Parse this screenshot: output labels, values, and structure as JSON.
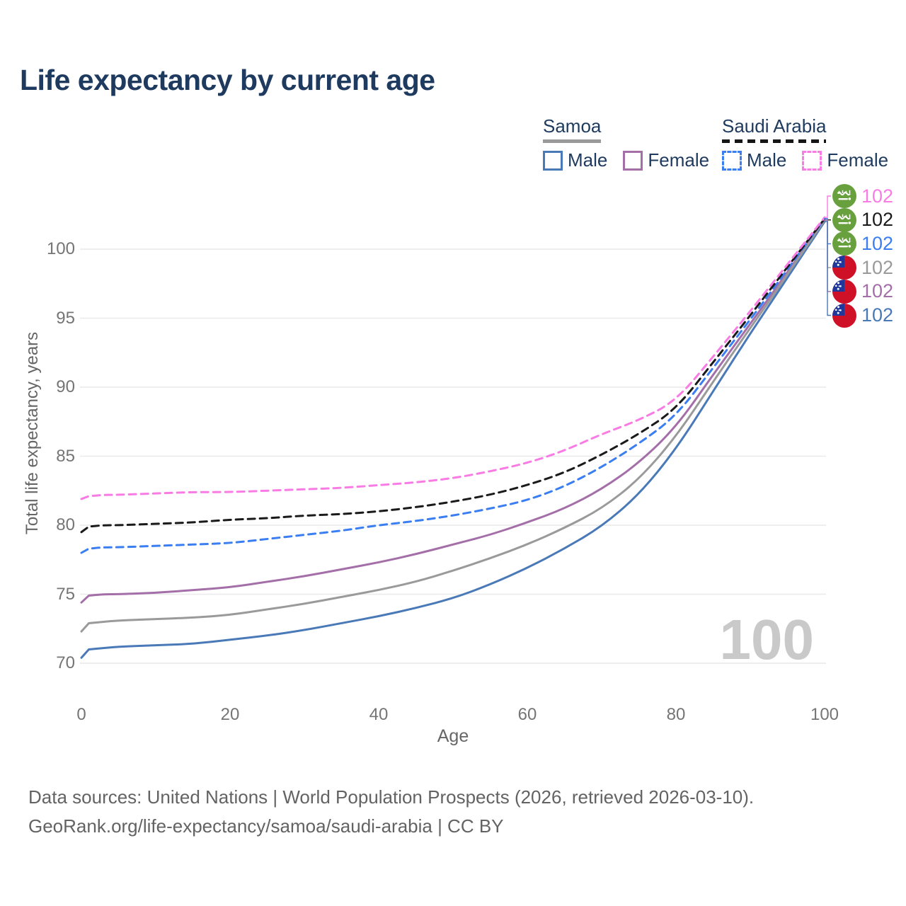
{
  "title": "Life expectancy by current age",
  "watermark": "100",
  "legend": {
    "groups": [
      {
        "name": "Samoa",
        "line_style": "solid",
        "underline_color": "#9a9a9a",
        "items": [
          {
            "label": "Male",
            "color": "#4a79b8",
            "dash": false
          },
          {
            "label": "Female",
            "color": "#a46fa8",
            "dash": false
          }
        ]
      },
      {
        "name": "Saudi Arabia",
        "line_style": "dashed",
        "underline_color": "#151515",
        "items": [
          {
            "label": "Male",
            "color": "#3a7ef2",
            "dash": true
          },
          {
            "label": "Female",
            "color": "#f97ce5",
            "dash": true
          }
        ]
      }
    ]
  },
  "footer": {
    "line1": "Data sources: United Nations | World Population Prospects (2026, retrieved 2026-03-10).",
    "line2": "GeoRank.org/life-expectancy/samoa/saudi-arabia | CC BY"
  },
  "chart_data": {
    "type": "line",
    "title": "Life expectancy by current age",
    "xlabel": "Age",
    "ylabel": "Total life expectancy, years",
    "x_ticks": [
      0,
      20,
      40,
      60,
      80,
      100
    ],
    "y_ticks": [
      70,
      75,
      80,
      85,
      90,
      95,
      100
    ],
    "xlim": [
      0,
      100
    ],
    "ylim": [
      70,
      105
    ],
    "grid": "horizontal",
    "ages": [
      0,
      1,
      3,
      5,
      10,
      15,
      20,
      25,
      30,
      35,
      40,
      45,
      50,
      55,
      60,
      65,
      70,
      75,
      80,
      85,
      90,
      95,
      100
    ],
    "series": [
      {
        "name": "Saudi Arabia — Female",
        "country": "Saudi Arabia",
        "sex": "Female",
        "color": "#f97ce5",
        "dash": true,
        "flag": "saudi-arabia",
        "end_label": "102",
        "values": [
          81.9,
          82.1,
          82.2,
          82.2,
          82.3,
          82.4,
          82.4,
          82.5,
          82.6,
          82.7,
          82.9,
          83.1,
          83.4,
          83.9,
          84.5,
          85.4,
          86.6,
          87.6,
          89.0,
          92.2,
          95.5,
          98.9,
          102.3
        ]
      },
      {
        "name": "Saudi Arabia — Both sexes",
        "country": "Saudi Arabia",
        "sex": "Both sexes",
        "color": "#1a1a1a",
        "dash": true,
        "flag": "saudi-arabia",
        "end_label": "102",
        "values": [
          79.5,
          79.9,
          80.0,
          80.0,
          80.1,
          80.2,
          80.4,
          80.5,
          80.7,
          80.8,
          81.0,
          81.3,
          81.7,
          82.2,
          82.9,
          83.8,
          85.1,
          86.6,
          88.4,
          91.8,
          95.2,
          98.7,
          102.2
        ]
      },
      {
        "name": "Saudi Arabia — Male",
        "country": "Saudi Arabia",
        "sex": "Male",
        "color": "#3a7ef2",
        "dash": true,
        "flag": "saudi-arabia",
        "end_label": "102",
        "values": [
          78.0,
          78.3,
          78.4,
          78.4,
          78.5,
          78.6,
          78.7,
          79.0,
          79.3,
          79.6,
          80.0,
          80.3,
          80.7,
          81.2,
          81.8,
          82.8,
          84.2,
          85.9,
          87.9,
          91.4,
          94.9,
          98.5,
          102.2
        ]
      },
      {
        "name": "Samoa — Both sexes",
        "country": "Samoa",
        "sex": "Both sexes",
        "color": "#9a9a9a",
        "dash": false,
        "flag": "samoa",
        "end_label": "102",
        "values": [
          72.3,
          72.9,
          73.0,
          73.1,
          73.2,
          73.3,
          73.5,
          73.9,
          74.3,
          74.8,
          75.3,
          75.9,
          76.7,
          77.6,
          78.6,
          79.8,
          81.2,
          83.3,
          86.4,
          90.4,
          94.3,
          98.1,
          102.1
        ]
      },
      {
        "name": "Samoa — Female",
        "country": "Samoa",
        "sex": "Female",
        "color": "#a46fa8",
        "dash": false,
        "flag": "samoa",
        "end_label": "102",
        "values": [
          74.4,
          74.9,
          75.0,
          75.0,
          75.1,
          75.3,
          75.5,
          75.9,
          76.3,
          76.8,
          77.3,
          77.9,
          78.6,
          79.3,
          80.2,
          81.2,
          82.6,
          84.5,
          87.1,
          90.9,
          94.6,
          98.3,
          102.1
        ]
      },
      {
        "name": "Samoa — Male",
        "country": "Samoa",
        "sex": "Male",
        "color": "#4a79b8",
        "dash": false,
        "flag": "samoa",
        "end_label": "102",
        "values": [
          70.4,
          71.0,
          71.1,
          71.2,
          71.3,
          71.4,
          71.7,
          72.0,
          72.4,
          72.9,
          73.4,
          74.0,
          74.7,
          75.7,
          76.9,
          78.3,
          79.9,
          82.2,
          85.5,
          89.7,
          93.9,
          97.9,
          102.0
        ]
      }
    ]
  }
}
